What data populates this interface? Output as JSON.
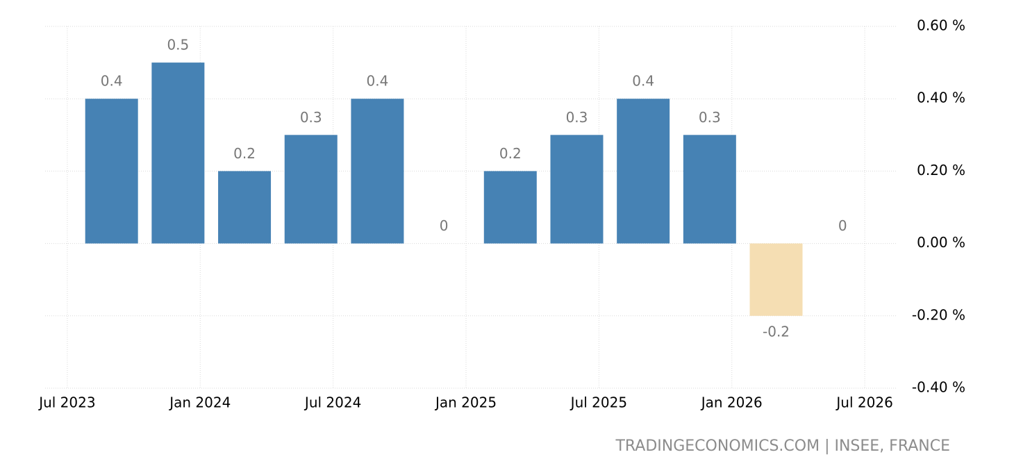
{
  "chart_data": {
    "type": "bar",
    "x": [
      "2023-09",
      "2023-12",
      "2024-03",
      "2024-06",
      "2024-09",
      "2024-12",
      "2025-03",
      "2025-06",
      "2025-09",
      "2025-12",
      "2026-03",
      "2026-06"
    ],
    "values": [
      0.4,
      0.5,
      0.2,
      0.3,
      0.4,
      0,
      0.2,
      0.3,
      0.4,
      0.3,
      -0.2,
      0
    ],
    "color": "#4682b4",
    "negative_color": "#f5deb3",
    "xlim": [
      "2023-06",
      "2026-08"
    ],
    "xticks": [
      {
        "value": "2023-07",
        "label": "Jul 2023"
      },
      {
        "value": "2024-01",
        "label": "Jan 2024"
      },
      {
        "value": "2024-07",
        "label": "Jul 2024"
      },
      {
        "value": "2025-01",
        "label": "Jan 2025"
      },
      {
        "value": "2025-07",
        "label": "Jul 2025"
      },
      {
        "value": "2026-01",
        "label": "Jan 2026"
      },
      {
        "value": "2026-07",
        "label": "Jul 2026"
      }
    ],
    "ylim": [
      -0.4,
      0.6
    ],
    "yticks": [
      {
        "value": 0.6,
        "label": "0.60 %"
      },
      {
        "value": 0.4,
        "label": "0.40 %"
      },
      {
        "value": 0.2,
        "label": "0.20 %"
      },
      {
        "value": 0,
        "label": "0.00 %"
      },
      {
        "value": -0.2,
        "label": "-0.20 %"
      },
      {
        "value": -0.4,
        "label": "-0.40 %"
      }
    ],
    "grid": true,
    "y_axis_side": "right",
    "source": "TRADINGECONOMICS.COM | INSEE, FRANCE"
  }
}
